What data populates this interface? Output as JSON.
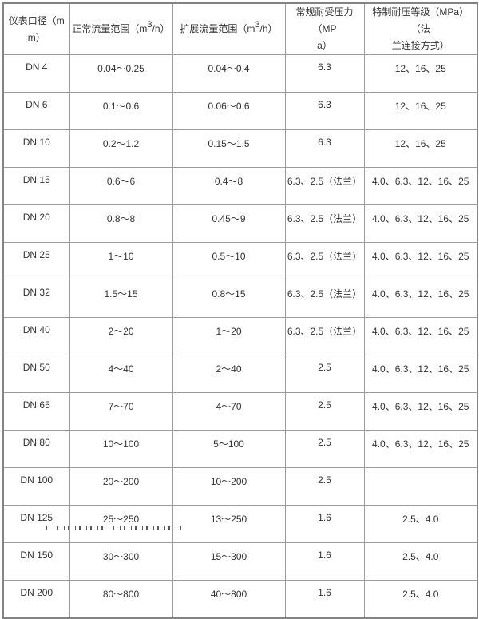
{
  "colors": {
    "background": "#ffffff",
    "text": "#333333",
    "grid_border": "#9c9c9c",
    "outer_border": "#848484"
  },
  "table": {
    "headers": [
      {
        "name": "仪表口径（mm）",
        "lines": [
          "仪表口径（m",
          "m）"
        ]
      },
      {
        "name": "正常流量范围（m3/h）",
        "pre": "正常流量范围（m",
        "sup": "3",
        "post": "/h）"
      },
      {
        "name": "扩展流量范围（m3/h）",
        "pre": "扩展流量范围（m",
        "sup": "3",
        "post": "/h）"
      },
      {
        "name": "常规耐受压力（MPa）",
        "lines": [
          "常规耐受压力（MP",
          "a）"
        ]
      },
      {
        "name": "特制耐压等级（MPa）（法兰连接方式）",
        "lines": [
          "特制耐压等级（MPa）（法",
          "兰连接方式）"
        ]
      }
    ],
    "rows": [
      [
        "DN 4",
        "0.04～0.25",
        "0.04～0.4",
        "6.3",
        "12、16、25"
      ],
      [
        "DN 6",
        "0.1～0.6",
        "0.06～0.6",
        "6.3",
        "12、16、25"
      ],
      [
        "DN 10",
        "0.2～1.2",
        "0.15～1.5",
        "6.3",
        "12、16、25"
      ],
      [
        "DN 15",
        "0.6～6",
        "0.4～8",
        "6.3、2.5（法兰）",
        "4.0、6.3、12、16、25"
      ],
      [
        "DN 20",
        "0.8～8",
        "0.45～9",
        "6.3、2.5（法兰）",
        "4.0、6.3、12、16、25"
      ],
      [
        "DN 25",
        "1～10",
        "0.5～10",
        "6.3、2.5（法兰）",
        "4.0、6.3、12、16、25"
      ],
      [
        "DN 32",
        "1.5～15",
        "0.8～15",
        "6.3、2.5（法兰）",
        "4.0、6.3、12、16、25"
      ],
      [
        "DN 40",
        "2～20",
        "1～20",
        "6.3、2.5（法兰）",
        "4.0、6.3、12、16、25"
      ],
      [
        "DN 50",
        "4～40",
        "2～40",
        "2.5",
        "4.0、6.3、12、16、25"
      ],
      [
        "DN 65",
        "7～70",
        "4～70",
        "2.5",
        "4.0、6.3、12、16、25"
      ],
      [
        "DN 80",
        "10～100",
        "5～100",
        "2.5",
        "4.0、6.3、12、16、25"
      ],
      [
        "DN 100",
        "20～200",
        "10～200",
        "2.5",
        ""
      ],
      [
        "DN 125",
        "25～250",
        "13～250",
        "1.6",
        "2.5、4.0"
      ],
      [
        "DN 150",
        "30～300",
        "15～300",
        "1.6",
        "2.5、4.0"
      ],
      [
        "DN 200",
        "80～800",
        "40～800",
        "1.6",
        "2.5、4.0"
      ]
    ]
  }
}
